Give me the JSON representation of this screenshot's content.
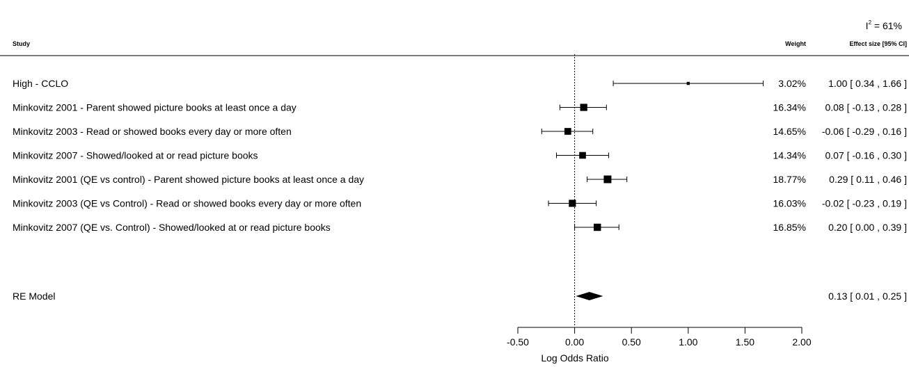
{
  "heterogeneity": {
    "label": "I",
    "sup": "2",
    "value": " = 61%"
  },
  "header": {
    "study": "Study",
    "weight": "Weight",
    "effect": "Effect size [95% CI]"
  },
  "chart_data": {
    "type": "forest",
    "xlabel": "Log Odds Ratio",
    "xlim": [
      -0.5,
      2.0
    ],
    "ticks": [
      "-0.50",
      "0.00",
      "0.50",
      "1.00",
      "1.50",
      "2.00"
    ],
    "tick_values": [
      -0.5,
      0,
      0.5,
      1.0,
      1.5,
      2.0
    ],
    "reference_line": 0,
    "studies": [
      {
        "label": "High  -  CCLO",
        "estimate": 1.0,
        "lower": 0.34,
        "upper": 1.66,
        "weight": "3.02%",
        "weight_value": 3.02,
        "ci_text": "1.00 [ 0.34 , 1.66 ]"
      },
      {
        "label": "Minkovitz 2001  -  Parent showed picture books at least once a day",
        "estimate": 0.08,
        "lower": -0.13,
        "upper": 0.28,
        "weight": "16.34%",
        "weight_value": 16.34,
        "ci_text": "0.08 [ -0.13 , 0.28 ]"
      },
      {
        "label": "Minkovitz 2003  -  Read or showed books every day or more often",
        "estimate": -0.06,
        "lower": -0.29,
        "upper": 0.16,
        "weight": "14.65%",
        "weight_value": 14.65,
        "ci_text": "-0.06 [ -0.29 , 0.16 ]"
      },
      {
        "label": "Minkovitz 2007  -  Showed/looked at or read picture books",
        "estimate": 0.07,
        "lower": -0.16,
        "upper": 0.3,
        "weight": "14.34%",
        "weight_value": 14.34,
        "ci_text": "0.07 [ -0.16 , 0.30 ]"
      },
      {
        "label": "Minkovitz 2001 (QE vs control)  -  Parent showed picture books at least once a day",
        "estimate": 0.29,
        "lower": 0.11,
        "upper": 0.46,
        "weight": "18.77%",
        "weight_value": 18.77,
        "ci_text": "0.29 [ 0.11 , 0.46 ]"
      },
      {
        "label": "Minkovitz 2003 (QE vs Control)  -  Read or showed books every day or more often",
        "estimate": -0.02,
        "lower": -0.23,
        "upper": 0.19,
        "weight": "16.03%",
        "weight_value": 16.03,
        "ci_text": "-0.02 [ -0.23 , 0.19 ]"
      },
      {
        "label": "Minkovitz 2007 (QE vs. Control)  -  Showed/looked at or read picture books",
        "estimate": 0.2,
        "lower": 0.0,
        "upper": 0.39,
        "weight": "16.85%",
        "weight_value": 16.85,
        "ci_text": "0.20 [ 0.00 , 0.39 ]"
      }
    ],
    "summary": {
      "label": "RE Model",
      "estimate": 0.13,
      "lower": 0.01,
      "upper": 0.25,
      "ci_text": "0.13 [ 0.01 , 0.25 ]"
    }
  }
}
